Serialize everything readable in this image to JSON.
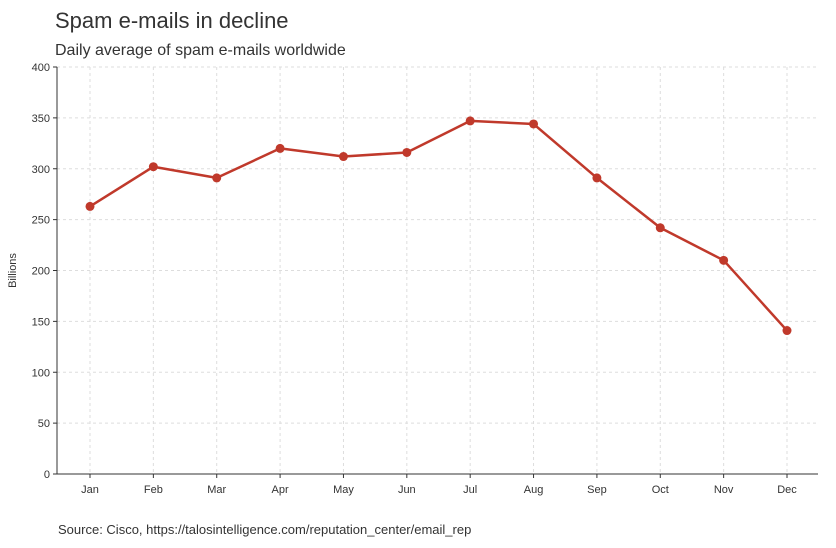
{
  "chart_data": {
    "type": "line",
    "title": "Spam e-mails in decline",
    "subtitle": "Daily average of spam e-mails worldwide",
    "ylabel": "Billions",
    "xlabel": "",
    "source": "Source: Cisco, https://talosintelligence.com/reputation_center/email_rep",
    "categories": [
      "Jan",
      "Feb",
      "Mar",
      "Apr",
      "May",
      "Jun",
      "Jul",
      "Aug",
      "Sep",
      "Oct",
      "Nov",
      "Dec"
    ],
    "values": [
      263,
      302,
      291,
      320,
      312,
      316,
      347,
      344,
      291,
      242,
      210,
      141
    ],
    "ylim": [
      0,
      400
    ],
    "yticks": [
      "0",
      "50",
      "100",
      "150",
      "200",
      "250",
      "300",
      "350",
      "400"
    ],
    "grid": true,
    "legend": "none",
    "line_color": "#c0392b",
    "grid_color": "#dddddd",
    "axis_color": "#333333"
  }
}
